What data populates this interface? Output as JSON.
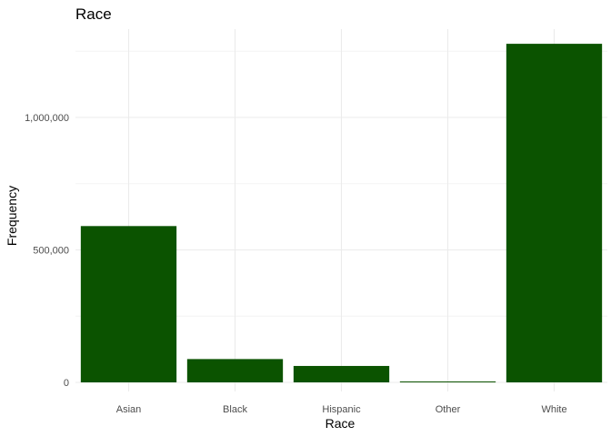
{
  "chart_data": {
    "type": "bar",
    "title": "Race",
    "xlabel": "Race",
    "ylabel": "Frequency",
    "categories": [
      "Asian",
      "Black",
      "Hispanic",
      "Other",
      "White"
    ],
    "values": [
      590000,
      88000,
      62000,
      3000,
      1278000
    ],
    "ylim": [
      0,
      1300000
    ],
    "yticks": [
      0,
      500000,
      1000000
    ],
    "ytick_labels": [
      "0",
      "500,000",
      "1,000,000"
    ],
    "bar_color": "#0b5300",
    "grid": true,
    "legend": "none"
  }
}
